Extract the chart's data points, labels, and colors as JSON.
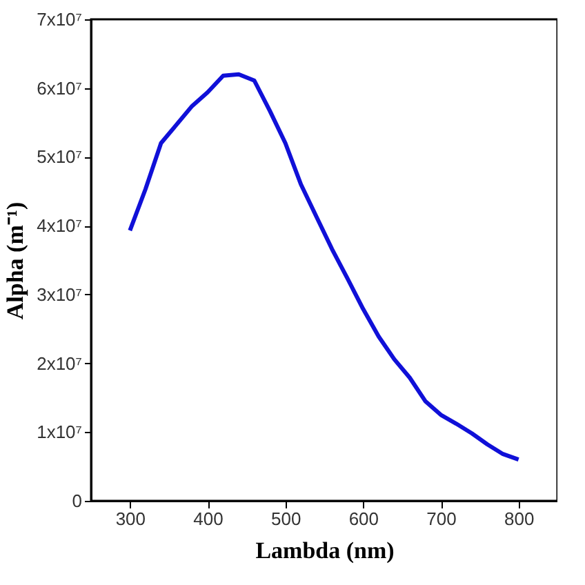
{
  "chart_data": {
    "type": "line",
    "xlabel": "Lambda (nm)",
    "ylabel": "Alpha (m⁻¹)",
    "x": [
      300,
      320,
      340,
      360,
      380,
      400,
      420,
      440,
      460,
      480,
      500,
      520,
      540,
      560,
      580,
      600,
      620,
      640,
      660,
      680,
      700,
      720,
      740,
      760,
      780,
      800
    ],
    "series": [
      {
        "color": "#1010d8",
        "values": [
          39300000,
          45300000,
          52000000,
          54700000,
          57400000,
          59400000,
          61800000,
          62000000,
          61100000,
          56700000,
          52000000,
          46000000,
          41300000,
          36600000,
          32300000,
          27900000,
          23900000,
          20600000,
          17900000,
          14500000,
          12500000,
          11200000,
          9800000,
          8200000,
          6800000,
          6000000
        ]
      }
    ],
    "xlim": [
      250,
      850
    ],
    "xticks": [
      300,
      400,
      500,
      600,
      700,
      800
    ],
    "ylim": [
      0,
      70000000
    ],
    "yticks": [
      0,
      {
        "value": 10000000,
        "label": "1x10⁷"
      },
      {
        "value": 20000000,
        "label": "2x10⁷"
      },
      {
        "value": 30000000,
        "label": "3x10⁷"
      },
      {
        "value": 40000000,
        "label": "4x10⁷"
      },
      {
        "value": 50000000,
        "label": "5x10⁷"
      },
      {
        "value": 60000000,
        "label": "6x10⁷"
      },
      {
        "value": 70000000,
        "label": "7x10⁷"
      }
    ],
    "grid": false,
    "legend": false,
    "marker": "none",
    "line_style": "solid"
  }
}
